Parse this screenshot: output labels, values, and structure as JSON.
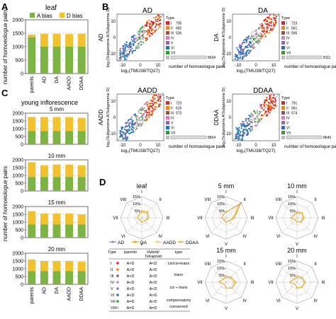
{
  "panels": {
    "A": "A",
    "B": "B",
    "C": "C",
    "D": "D"
  },
  "leaf_title": "leaf",
  "legend_a": "A bias",
  "legend_d": "D bias",
  "ylabel_a": "number of homoeologue pairs",
  "ylabel_c": "number of homoeologue pairs",
  "c_title": "young inflorescence",
  "xcats": [
    "parents",
    "AD",
    "DA",
    "AADD",
    "DDAA"
  ],
  "chart_data": [
    {
      "type": "bar",
      "panel": "A",
      "title": "leaf",
      "categories": [
        "parents",
        "AD",
        "DA",
        "AADD",
        "DDAA"
      ],
      "ylim": [
        0,
        2000
      ],
      "yticks": [
        0,
        500,
        1000,
        1500,
        2000
      ],
      "series": [
        {
          "name": "A bias",
          "values": [
            1350,
            1000,
            1000,
            1000,
            1000
          ],
          "color": "#7cb342"
        },
        {
          "name": "D bias",
          "values": [
            1450,
            1480,
            1480,
            1470,
            1480
          ],
          "color": "#f2c12e"
        }
      ]
    },
    {
      "type": "bar",
      "panel": "C",
      "title": "5 mm",
      "categories": [
        "parents",
        "AD",
        "DA",
        "AADD",
        "DDAA"
      ],
      "ylim": [
        0,
        2000
      ],
      "yticks": [
        0,
        500,
        1000,
        1500,
        2000
      ],
      "series": [
        {
          "name": "A bias",
          "values": [
            850,
            850,
            850,
            850,
            850
          ],
          "color": "#7cb342"
        },
        {
          "name": "D bias",
          "values": [
            1750,
            1750,
            1750,
            1750,
            1700
          ],
          "color": "#f2c12e"
        }
      ]
    },
    {
      "type": "bar",
      "panel": "C",
      "title": "10 mm",
      "categories": [
        "parents",
        "AD",
        "DA",
        "AADD",
        "DDAA"
      ],
      "ylim": [
        0,
        2000
      ],
      "yticks": [
        0,
        500,
        1000,
        1500,
        2000
      ],
      "series": [
        {
          "name": "A bias",
          "values": [
            900,
            900,
            900,
            900,
            900
          ],
          "color": "#7cb342"
        },
        {
          "name": "D bias",
          "values": [
            1850,
            1650,
            1700,
            1700,
            1650
          ],
          "color": "#f2c12e"
        }
      ]
    },
    {
      "type": "bar",
      "panel": "C",
      "title": "15 mm",
      "categories": [
        "parents",
        "AD",
        "DA",
        "AADD",
        "DDAA"
      ],
      "ylim": [
        0,
        2000
      ],
      "yticks": [
        0,
        500,
        1000,
        1500,
        2000
      ],
      "series": [
        {
          "name": "A bias",
          "values": [
            850,
            850,
            850,
            850,
            850
          ],
          "color": "#7cb342"
        },
        {
          "name": "D bias",
          "values": [
            1700,
            1550,
            1550,
            1550,
            1500
          ],
          "color": "#f2c12e"
        }
      ]
    },
    {
      "type": "bar",
      "panel": "C",
      "title": "20 mm",
      "categories": [
        "parents",
        "AD",
        "DA",
        "AADD",
        "DDAA"
      ],
      "ylim": [
        0,
        2000
      ],
      "yticks": [
        0,
        500,
        1000,
        1500,
        2000
      ],
      "series": [
        {
          "name": "A bias",
          "values": [
            850,
            850,
            850,
            850,
            850
          ],
          "color": "#7cb342"
        },
        {
          "name": "D bias",
          "values": [
            1600,
            1500,
            1500,
            1500,
            1450
          ],
          "color": "#f2c12e"
        }
      ]
    },
    {
      "type": "scatter",
      "panel": "B",
      "plots": [
        {
          "title": "AD",
          "counts": [
            "705",
            "682",
            "536",
            "",
            "",
            "",
            "",
            ""
          ],
          "tail": "8634"
        },
        {
          "title": "DA",
          "counts": [
            "723",
            "661",
            "595",
            "",
            "",
            "",
            "",
            ""
          ],
          "tail": "8111"
        },
        {
          "title": "AADD",
          "counts": [
            "723",
            "616",
            "573",
            "",
            "",
            "",
            "",
            ""
          ],
          "tail": "8604"
        },
        {
          "title": "DDAA",
          "counts": [
            "791",
            "661",
            "574",
            "",
            "",
            "",
            "",
            ""
          ],
          "tail": "8640"
        }
      ],
      "xlabel": "log2(TM-1/3-79)",
      "ylabel": "log2(Subgenome A/Subgenome D)",
      "xlabel_display": "log₂(TMU38/TQ27)",
      "ylabel_display": "log₂(Subgenome A/Subgenome D)",
      "xticks": [
        "-10",
        "0",
        "10"
      ],
      "yticks": [
        "10",
        "0",
        "-10"
      ],
      "type_label": "Type",
      "types": [
        "I",
        "II",
        "III",
        "IV",
        "V",
        "VI",
        "VII",
        "VIII"
      ],
      "type_colors": [
        "#d62728",
        "#ff7f0e",
        "#8c564b",
        "#e377c2",
        "#9467bd",
        "#1f77b4",
        "#2ca02c",
        "#bbbbbb"
      ],
      "bar_xlabel": "number of homoeologue pairs"
    },
    {
      "type": "radar",
      "panel": "D",
      "axes": [
        "I",
        "II",
        "III",
        "IV",
        "V",
        "VI",
        "VII",
        "VIII"
      ],
      "rticks": [
        "15%",
        "10%",
        "5%"
      ],
      "series_names": [
        "AD",
        "DA",
        "AADD",
        "DDAA"
      ],
      "series_colors": [
        "#7b7fc0",
        "#f0a500",
        "#f6c86e",
        "#e9b23a"
      ],
      "plots": [
        {
          "title": "leaf",
          "values": [
            [
              4,
              5,
              4,
              3,
              3,
              2,
              3,
              3
            ],
            [
              5,
              6,
              5,
              3,
              3,
              2,
              3,
              3
            ],
            [
              4,
              5,
              4,
              3,
              3,
              2,
              3,
              3
            ],
            [
              5,
              6,
              5,
              3,
              3,
              2,
              3,
              3
            ]
          ]
        },
        {
          "title": "5 mm",
          "values": [
            [
              4,
              15,
              5,
              3,
              3,
              2,
              3,
              3
            ],
            [
              4,
              14,
              6,
              3,
              3,
              2,
              3,
              3
            ],
            [
              4,
              13,
              5,
              3,
              3,
              2,
              3,
              3
            ],
            [
              4,
              14,
              5,
              3,
              3,
              2,
              3,
              3
            ]
          ]
        },
        {
          "title": "10 mm",
          "values": [
            [
              3,
              5,
              4,
              4,
              3,
              2,
              4,
              3
            ],
            [
              4,
              5,
              5,
              4,
              3,
              2,
              4,
              3
            ],
            [
              3,
              5,
              4,
              4,
              3,
              2,
              4,
              3
            ],
            [
              4,
              5,
              5,
              4,
              3,
              2,
              4,
              3
            ]
          ]
        },
        {
          "title": "15 mm",
          "values": [
            [
              3,
              4,
              6,
              6,
              4,
              2,
              5,
              3
            ],
            [
              4,
              5,
              7,
              6,
              4,
              2,
              5,
              3
            ],
            [
              3,
              4,
              6,
              6,
              4,
              2,
              5,
              3
            ],
            [
              4,
              5,
              7,
              6,
              4,
              2,
              5,
              3
            ]
          ]
        },
        {
          "title": "20 mm",
          "values": [
            [
              3,
              4,
              5,
              5,
              4,
              2,
              5,
              3
            ],
            [
              4,
              5,
              6,
              5,
              4,
              2,
              5,
              3
            ],
            [
              3,
              4,
              5,
              5,
              4,
              2,
              5,
              3
            ],
            [
              4,
              5,
              6,
              5,
              4,
              2,
              5,
              3
            ]
          ]
        }
      ]
    }
  ],
  "radar_titles": [
    "leaf",
    "5 mm",
    "10 mm",
    "15 mm",
    "20 mm"
  ],
  "c_subtitles": [
    "5 mm",
    "10 mm",
    "15 mm",
    "20 mm"
  ],
  "table": {
    "headers": [
      "Type",
      "parents",
      "Hybrid/\nTetraploid",
      "type"
    ],
    "rows": [
      {
        "type": "I",
        "parents": "A>D",
        "hybrid": "A<D",
        "color": "#d62728"
      },
      {
        "type": "II",
        "parents": "A>D",
        "hybrid": "A>D",
        "color": "#ff7f0e"
      },
      {
        "type": "III",
        "parents": "A<D",
        "hybrid": "A<D",
        "color": "#8c564b"
      },
      {
        "type": "IV",
        "parents": "A<D",
        "hybrid": "A>D",
        "color": "#e377c2"
      },
      {
        "type": "V",
        "parents": "A>D",
        "hybrid": "A<D",
        "color": "#9467bd"
      },
      {
        "type": "VI",
        "parents": "A<D",
        "hybrid": "A>D",
        "color": "#1f77b4"
      },
      {
        "type": "VII",
        "parents": "A=D",
        "hybrid": "A>D",
        "color": "#2ca02c"
      },
      {
        "type": "VIII",
        "parents": "A=D",
        "hybrid": "A=D",
        "color": "#bbbbbb"
      }
    ],
    "groups": [
      "cis/cis+trans",
      "trans",
      "cis ÷ trans",
      "compensatory",
      "conserved"
    ]
  }
}
